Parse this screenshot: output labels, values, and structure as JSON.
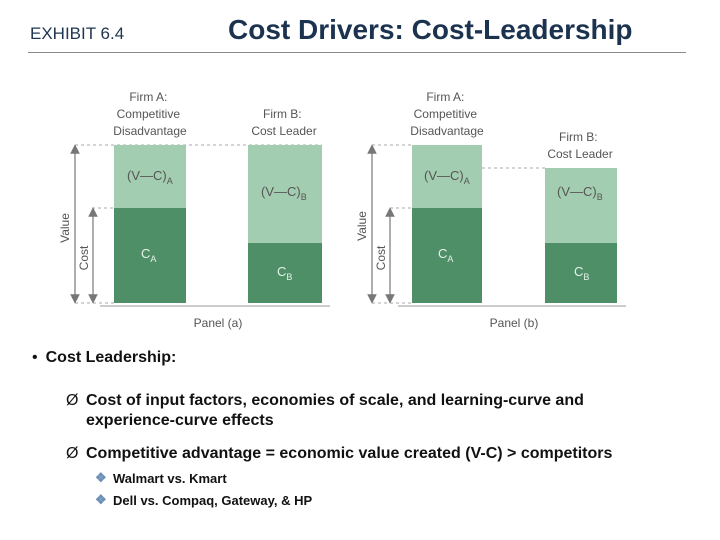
{
  "header": {
    "exhibit": "EXHIBIT 6.4",
    "title": "Cost Drivers: Cost-Leadership"
  },
  "diagram": {
    "panels": [
      {
        "firmA": [
          "Firm A:",
          "Competitive",
          "Disadvantage"
        ],
        "firmB": [
          "Firm B:",
          "Cost Leader"
        ],
        "vcA": "(V—C)",
        "vcA_sub": "A",
        "vcB": "(V—C)",
        "vcB_sub": "B",
        "cA": "C",
        "cA_sub": "A",
        "cB": "C",
        "cB_sub": "B",
        "value_label": "Value",
        "cost_label": "Cost",
        "caption": "Panel (a)"
      },
      {
        "firmA": [
          "Firm A:",
          "Competitive",
          "Disadvantage"
        ],
        "firmB": [
          "Firm B:",
          "Cost Leader"
        ],
        "vcA": "(V—C)",
        "vcA_sub": "A",
        "vcB": "(V—C)",
        "vcB_sub": "B",
        "cA": "C",
        "cA_sub": "A",
        "cB": "C",
        "cB_sub": "B",
        "value_label": "Value",
        "cost_label": "Cost",
        "caption": "Panel (b)"
      }
    ],
    "colors": {
      "light_green": "#a3cdb0",
      "dark_green": "#4e8f68",
      "axis": "#777777"
    }
  },
  "bullets": {
    "main": "Cost Leadership:",
    "main_marker": "•",
    "sub_marker": "Ø",
    "sub3_marker": "❖",
    "items": [
      "Cost of input factors, economies of scale, and learning-curve and experience-curve effects",
      "Competitive advantage = economic value created (V-C) > competitors"
    ],
    "subitems": [
      "Walmart vs. Kmart",
      "Dell vs. Compaq, Gateway, & HP"
    ]
  }
}
